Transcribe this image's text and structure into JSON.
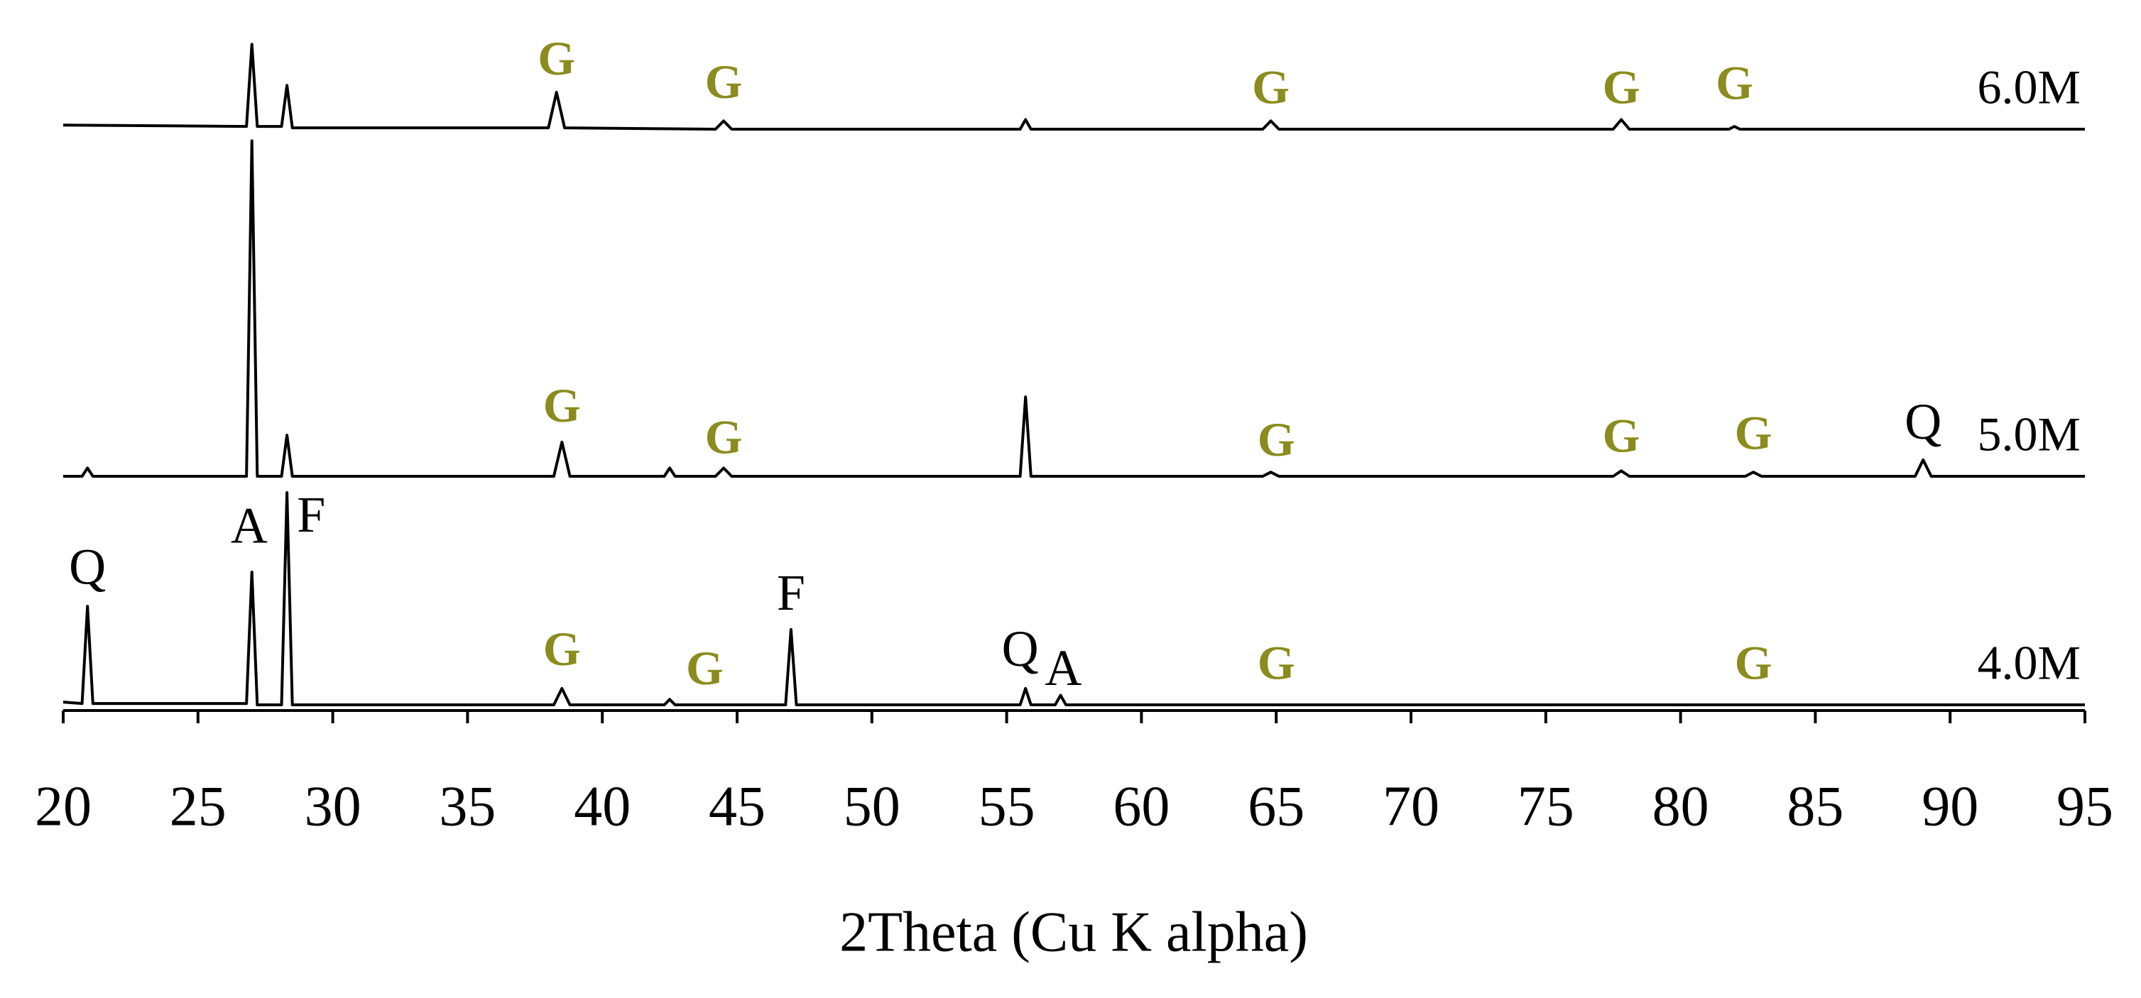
{
  "chart_data": {
    "type": "line",
    "x_label": "2Theta (Cu K alpha)",
    "xlim": [
      20,
      95
    ],
    "xticks": [
      20,
      25,
      30,
      35,
      40,
      45,
      50,
      55,
      60,
      65,
      70,
      75,
      80,
      85,
      90,
      95
    ],
    "series": [
      {
        "name": "6.0M",
        "color": "#000000",
        "x": [
          20,
          26.8,
          27.0,
          27.2,
          28.1,
          28.3,
          28.5,
          38.0,
          38.3,
          38.6,
          44.2,
          44.5,
          44.8,
          55.5,
          55.7,
          55.9,
          64.5,
          64.8,
          65.1,
          77.5,
          77.8,
          78.1,
          81.8,
          82.0,
          82.2,
          95
        ],
        "values": [
          3,
          2,
          62,
          2,
          2,
          32,
          1,
          1,
          27,
          1,
          0,
          6,
          0,
          0,
          7,
          0,
          0,
          6,
          0,
          0,
          7,
          0,
          0,
          2,
          0,
          0
        ],
        "annotations": [
          {
            "text": "G",
            "x": 38.3,
            "y": 48,
            "color": "#8b8b1e"
          },
          {
            "text": "G",
            "x": 44.5,
            "y": 31,
            "color": "#8b8b1e"
          },
          {
            "text": "G",
            "x": 64.8,
            "y": 27,
            "color": "#8b8b1e"
          },
          {
            "text": "G",
            "x": 77.8,
            "y": 27,
            "color": "#8b8b1e"
          },
          {
            "text": "G",
            "x": 82.0,
            "y": 30,
            "color": "#8b8b1e"
          }
        ]
      },
      {
        "name": "5.0M",
        "color": "#000000",
        "x": [
          20,
          20.7,
          20.9,
          21.1,
          26.8,
          27.0,
          27.2,
          28.1,
          28.3,
          28.5,
          38.2,
          38.5,
          38.8,
          42.3,
          42.5,
          42.7,
          44.2,
          44.5,
          44.8,
          55.5,
          55.7,
          55.9,
          64.5,
          64.8,
          65.1,
          77.5,
          77.8,
          78.1,
          82.4,
          82.7,
          83.0,
          88.7,
          89.0,
          89.3,
          95
        ],
        "values": [
          0,
          0,
          6,
          0,
          0,
          245,
          0,
          0,
          30,
          0,
          0,
          25,
          0,
          0,
          6,
          0,
          0,
          6,
          0,
          0,
          58,
          0,
          0,
          3,
          0,
          0,
          4,
          0,
          0,
          3,
          0,
          0,
          12,
          0,
          0
        ],
        "annotations": [
          {
            "text": "G",
            "x": 38.5,
            "y": 48,
            "color": "#8b8b1e"
          },
          {
            "text": "G",
            "x": 44.5,
            "y": 25,
            "color": "#8b8b1e"
          },
          {
            "text": "G",
            "x": 65.0,
            "y": 23,
            "color": "#8b8b1e"
          },
          {
            "text": "G",
            "x": 77.8,
            "y": 26,
            "color": "#8b8b1e"
          },
          {
            "text": "G",
            "x": 82.7,
            "y": 28,
            "color": "#8b8b1e"
          },
          {
            "text": "Q",
            "x": 89.0,
            "y": 36,
            "color": "#000000"
          }
        ]
      },
      {
        "name": "4.0M",
        "color": "#000000",
        "x": [
          20,
          20.7,
          20.9,
          21.1,
          26.8,
          27.0,
          27.2,
          28.1,
          28.3,
          28.5,
          38.2,
          38.5,
          38.8,
          42.3,
          42.5,
          42.7,
          46.8,
          47.0,
          47.2,
          55.5,
          55.7,
          55.9,
          56.8,
          57.0,
          57.2,
          95
        ],
        "values": [
          2,
          1,
          72,
          1,
          1,
          97,
          0,
          0,
          155,
          0,
          0,
          12,
          0,
          0,
          4,
          0,
          0,
          55,
          0,
          0,
          12,
          0,
          0,
          7,
          0,
          0
        ],
        "annotations": [
          {
            "text": "Q",
            "x": 20.9,
            "y": 97,
            "color": "#000000"
          },
          {
            "text": "A",
            "x": 26.9,
            "y": 127,
            "color": "#000000"
          },
          {
            "text": "F",
            "x": 29.2,
            "y": 135,
            "color": "#000000"
          },
          {
            "text": "G",
            "x": 38.5,
            "y": 37,
            "color": "#8b8b1e"
          },
          {
            "text": "G",
            "x": 43.8,
            "y": 23,
            "color": "#8b8b1e"
          },
          {
            "text": "F",
            "x": 47.0,
            "y": 78,
            "color": "#000000"
          },
          {
            "text": "Q",
            "x": 55.5,
            "y": 37,
            "color": "#000000"
          },
          {
            "text": "A",
            "x": 57.1,
            "y": 23,
            "color": "#000000"
          },
          {
            "text": "G",
            "x": 65.0,
            "y": 27,
            "color": "#8b8b1e"
          },
          {
            "text": "G",
            "x": 82.7,
            "y": 27,
            "color": "#8b8b1e"
          }
        ]
      }
    ]
  }
}
